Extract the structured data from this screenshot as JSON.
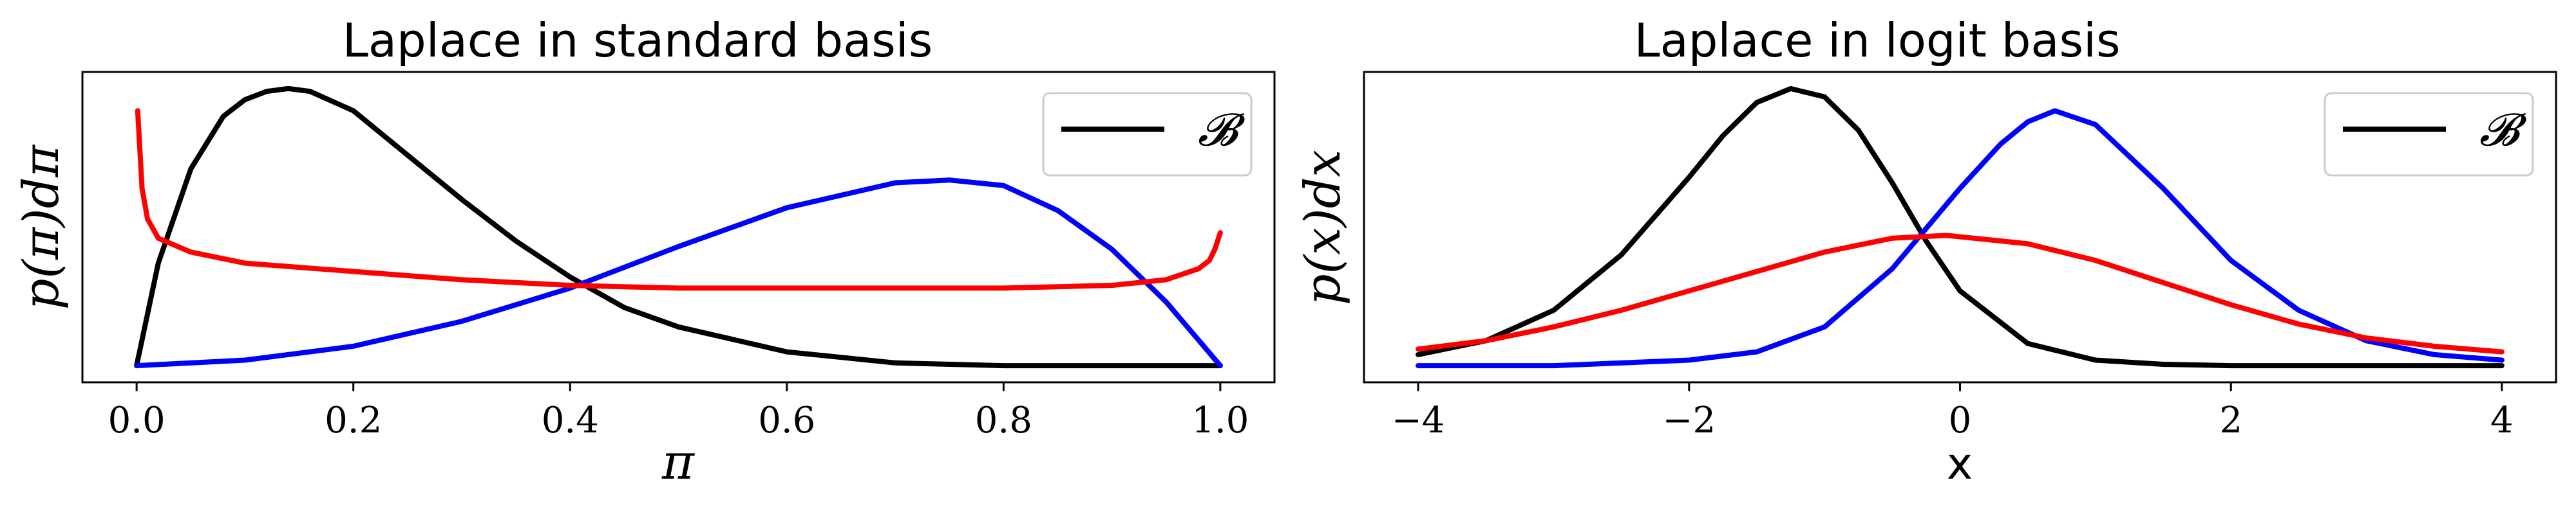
{
  "chart_data": [
    {
      "type": "line",
      "title": "Laplace in standard basis",
      "xlabel": "π",
      "ylabel": "p(π)dπ",
      "xlim": [
        -0.05,
        1.05
      ],
      "ylim": [
        -0.06,
        1.06
      ],
      "xticks": [
        0.0,
        0.2,
        0.4,
        0.6,
        0.8,
        1.0
      ],
      "xtick_labels": [
        "0.0",
        "0.2",
        "0.4",
        "0.6",
        "0.8",
        "1.0"
      ],
      "yticks": [],
      "legend": {
        "entries": [
          "𝓑"
        ],
        "position": "upper right"
      },
      "series": [
        {
          "color": "#000000",
          "x": [
            0.0,
            0.02,
            0.05,
            0.08,
            0.1,
            0.12,
            0.14,
            0.16,
            0.2,
            0.25,
            0.3,
            0.35,
            0.4,
            0.45,
            0.5,
            0.6,
            0.7,
            0.8,
            0.9,
            1.0
          ],
          "y": [
            0.0,
            0.37,
            0.71,
            0.9,
            0.96,
            0.99,
            1.0,
            0.99,
            0.92,
            0.76,
            0.6,
            0.45,
            0.32,
            0.21,
            0.14,
            0.05,
            0.01,
            0.0,
            0.0,
            0.0
          ]
        },
        {
          "color": "#0000ff",
          "x": [
            0.0,
            0.1,
            0.2,
            0.3,
            0.4,
            0.5,
            0.6,
            0.7,
            0.75,
            0.8,
            0.85,
            0.9,
            0.95,
            1.0
          ],
          "y": [
            0.0,
            0.02,
            0.07,
            0.16,
            0.28,
            0.43,
            0.57,
            0.66,
            0.67,
            0.65,
            0.56,
            0.42,
            0.23,
            0.0
          ]
        },
        {
          "color": "#ff0000",
          "x": [
            0.001,
            0.005,
            0.01,
            0.02,
            0.05,
            0.1,
            0.2,
            0.3,
            0.4,
            0.5,
            0.6,
            0.7,
            0.8,
            0.9,
            0.95,
            0.98,
            0.99,
            0.995,
            1.0
          ],
          "y": [
            0.92,
            0.64,
            0.53,
            0.46,
            0.41,
            0.37,
            0.34,
            0.31,
            0.29,
            0.28,
            0.28,
            0.28,
            0.28,
            0.29,
            0.31,
            0.35,
            0.38,
            0.42,
            0.48
          ]
        }
      ]
    },
    {
      "type": "line",
      "title": "Laplace in logit basis",
      "xlabel": "x",
      "ylabel": "p(x)dx",
      "xlim": [
        -4.4,
        4.4
      ],
      "ylim": [
        -0.06,
        1.06
      ],
      "xticks": [
        -4,
        -2,
        0,
        2,
        4
      ],
      "xtick_labels": [
        "−4",
        "−2",
        "0",
        "2",
        "4"
      ],
      "yticks": [],
      "legend": {
        "entries": [
          "𝓑"
        ],
        "position": "upper right"
      },
      "series": [
        {
          "color": "#000000",
          "x": [
            -4.0,
            -3.5,
            -3.0,
            -2.5,
            -2.0,
            -1.75,
            -1.5,
            -1.25,
            -1.0,
            -0.75,
            -0.5,
            -0.25,
            0.0,
            0.5,
            1.0,
            1.5,
            2.0,
            3.0,
            4.0
          ],
          "y": [
            0.04,
            0.09,
            0.2,
            0.4,
            0.68,
            0.83,
            0.95,
            1.0,
            0.97,
            0.85,
            0.66,
            0.45,
            0.27,
            0.08,
            0.02,
            0.005,
            0.0,
            0.0,
            0.0
          ]
        },
        {
          "color": "#0000ff",
          "x": [
            -4.0,
            -3.0,
            -2.0,
            -1.5,
            -1.0,
            -0.5,
            0.0,
            0.3,
            0.5,
            0.7,
            1.0,
            1.5,
            2.0,
            2.5,
            3.0,
            3.5,
            4.0
          ],
          "y": [
            0.0,
            0.0,
            0.02,
            0.05,
            0.14,
            0.35,
            0.64,
            0.8,
            0.88,
            0.92,
            0.87,
            0.64,
            0.38,
            0.2,
            0.09,
            0.04,
            0.02
          ]
        },
        {
          "color": "#ff0000",
          "x": [
            -4.0,
            -3.5,
            -3.0,
            -2.5,
            -2.0,
            -1.5,
            -1.0,
            -0.5,
            -0.1,
            0.5,
            1.0,
            1.5,
            2.0,
            2.5,
            3.0,
            3.5,
            4.0
          ],
          "y": [
            0.06,
            0.09,
            0.14,
            0.2,
            0.27,
            0.34,
            0.41,
            0.46,
            0.47,
            0.44,
            0.38,
            0.3,
            0.22,
            0.15,
            0.1,
            0.07,
            0.05
          ]
        }
      ]
    }
  ]
}
